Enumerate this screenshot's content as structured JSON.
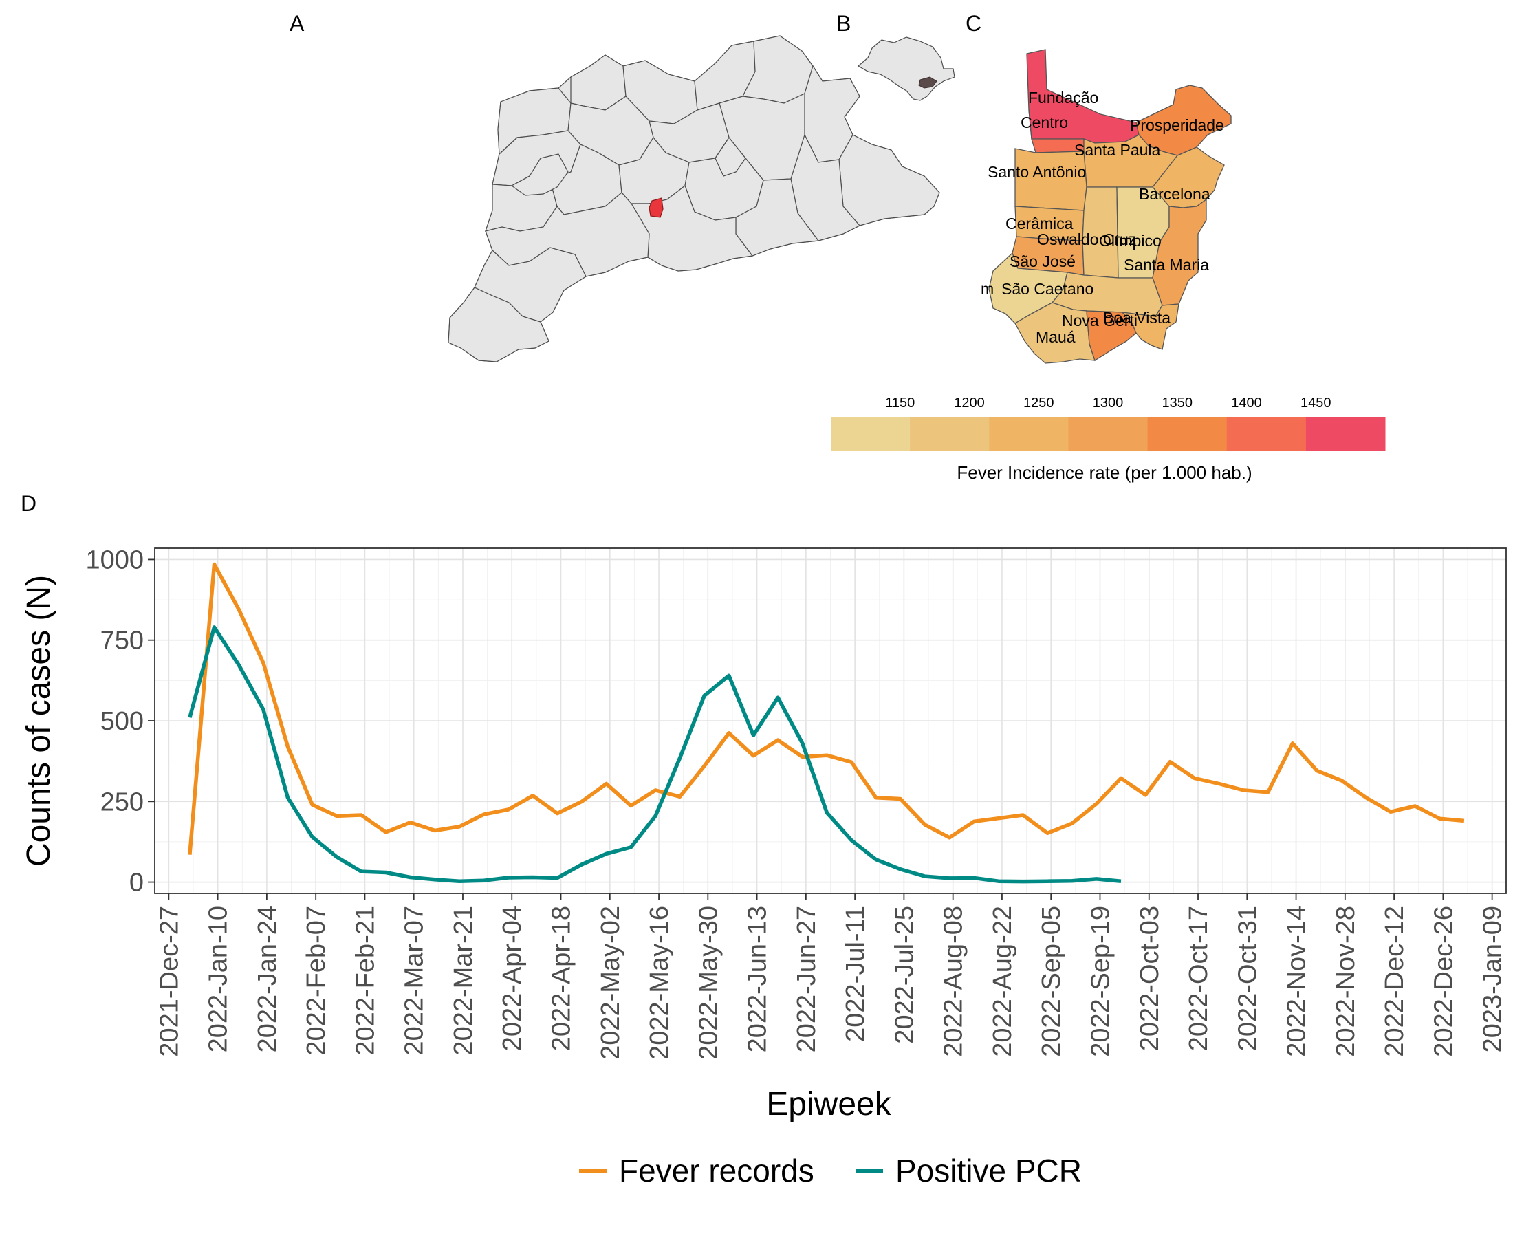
{
  "panels": {
    "a": "A",
    "b": "B",
    "c": "C",
    "d": "D"
  },
  "colors": {
    "fever": "#f28e1c",
    "pcr": "#008a85",
    "highlight": "#e8363c",
    "state_highlight": "#5a4a4a"
  },
  "map_c": {
    "labels": [
      {
        "id": "fundacao",
        "text": "Fundação"
      },
      {
        "id": "centro",
        "text": "Centro"
      },
      {
        "id": "prosperidade",
        "text": "Prosperidade"
      },
      {
        "id": "santa-paula",
        "text": "Santa Paula"
      },
      {
        "id": "santo-antonio",
        "text": "Santo Antônio"
      },
      {
        "id": "barcelona",
        "text": "Barcelona"
      },
      {
        "id": "ceramica",
        "text": "Cerâmica"
      },
      {
        "id": "oswaldo-cruz",
        "text": "Oswaldo Cruz"
      },
      {
        "id": "olimpico",
        "text": "Olímpico"
      },
      {
        "id": "sao-jose",
        "text": "São José"
      },
      {
        "id": "santa-maria",
        "text": "Santa Maria"
      },
      {
        "id": "jardim",
        "text": "m"
      },
      {
        "id": "sao-caetano",
        "text": "São Caetano"
      },
      {
        "id": "nova-gerti",
        "text": "Nova Gerti"
      },
      {
        "id": "boa-vista",
        "text": "Boa Vista"
      },
      {
        "id": "maua",
        "text": "Mauá"
      }
    ],
    "colorbar": {
      "title": "Fever Incidence rate (per 1.000 hab.)",
      "ticks": [
        "1150",
        "1200",
        "1250",
        "1300",
        "1350",
        "1400",
        "1450"
      ],
      "range": [
        1100,
        1500
      ],
      "colors": [
        "#ecd592",
        "#ecc47c",
        "#efb565",
        "#f0a357",
        "#f28a46",
        "#f46d52",
        "#ef4a63"
      ]
    }
  },
  "chart_data": {
    "type": "line",
    "xlabel": "Epiweek",
    "ylabel": "Counts of cases (N)",
    "x_tick_labels": [
      "2021-Dec-27",
      "2022-Jan-10",
      "2022-Jan-24",
      "2022-Feb-07",
      "2022-Feb-21",
      "2022-Mar-07",
      "2022-Mar-21",
      "2022-Apr-04",
      "2022-Apr-18",
      "2022-May-02",
      "2022-May-16",
      "2022-May-30",
      "2022-Jun-13",
      "2022-Jun-27",
      "2022-Jul-11",
      "2022-Jul-25",
      "2022-Aug-08",
      "2022-Aug-22",
      "2022-Sep-05",
      "2022-Sep-19",
      "2022-Oct-03",
      "2022-Oct-17",
      "2022-Oct-31",
      "2022-Nov-14",
      "2022-Nov-28",
      "2022-Dec-12",
      "2022-Dec-26",
      "2023-Jan-09"
    ],
    "x_range": [
      "2021-12-23",
      "2023-01-13"
    ],
    "y_ticks": [
      "0",
      "250",
      "500",
      "750",
      "1000"
    ],
    "ylim": [
      -35,
      1035
    ],
    "grid": true,
    "legend_position": "bottom",
    "series": [
      {
        "name": "Fever records",
        "color": "#f28e1c",
        "points": [
          [
            "2022-01-02",
            85
          ],
          [
            "2022-01-09",
            985
          ],
          [
            "2022-01-16",
            845
          ],
          [
            "2022-01-23",
            680
          ],
          [
            "2022-01-30",
            420
          ],
          [
            "2022-02-06",
            240
          ],
          [
            "2022-02-13",
            205
          ],
          [
            "2022-02-20",
            208
          ],
          [
            "2022-02-27",
            155
          ],
          [
            "2022-03-06",
            185
          ],
          [
            "2022-03-13",
            160
          ],
          [
            "2022-03-20",
            172
          ],
          [
            "2022-03-27",
            210
          ],
          [
            "2022-04-03",
            225
          ],
          [
            "2022-04-10",
            268
          ],
          [
            "2022-04-17",
            213
          ],
          [
            "2022-04-24",
            250
          ],
          [
            "2022-05-01",
            305
          ],
          [
            "2022-05-08",
            237
          ],
          [
            "2022-05-15",
            285
          ],
          [
            "2022-05-22",
            265
          ],
          [
            "2022-05-29",
            360
          ],
          [
            "2022-06-05",
            462
          ],
          [
            "2022-06-12",
            392
          ],
          [
            "2022-06-19",
            440
          ],
          [
            "2022-06-26",
            388
          ],
          [
            "2022-07-03",
            393
          ],
          [
            "2022-07-10",
            372
          ],
          [
            "2022-07-17",
            262
          ],
          [
            "2022-07-24",
            258
          ],
          [
            "2022-07-31",
            178
          ],
          [
            "2022-08-07",
            138
          ],
          [
            "2022-08-14",
            188
          ],
          [
            "2022-08-21",
            198
          ],
          [
            "2022-08-28",
            208
          ],
          [
            "2022-09-04",
            152
          ],
          [
            "2022-09-11",
            182
          ],
          [
            "2022-09-18",
            243
          ],
          [
            "2022-09-25",
            322
          ],
          [
            "2022-10-02",
            270
          ],
          [
            "2022-10-09",
            373
          ],
          [
            "2022-10-16",
            322
          ],
          [
            "2022-10-23",
            305
          ],
          [
            "2022-10-30",
            285
          ],
          [
            "2022-11-06",
            279
          ],
          [
            "2022-11-13",
            430
          ],
          [
            "2022-11-20",
            345
          ],
          [
            "2022-11-27",
            315
          ],
          [
            "2022-12-04",
            262
          ],
          [
            "2022-12-11",
            218
          ],
          [
            "2022-12-18",
            236
          ],
          [
            "2022-12-25",
            197
          ],
          [
            "2023-01-01",
            190
          ]
        ]
      },
      {
        "name": "Positive PCR",
        "color": "#008a85",
        "points": [
          [
            "2022-01-02",
            510
          ],
          [
            "2022-01-09",
            790
          ],
          [
            "2022-01-16",
            673
          ],
          [
            "2022-01-23",
            535
          ],
          [
            "2022-01-30",
            262
          ],
          [
            "2022-02-06",
            140
          ],
          [
            "2022-02-13",
            78
          ],
          [
            "2022-02-20",
            33
          ],
          [
            "2022-02-27",
            30
          ],
          [
            "2022-03-06",
            15
          ],
          [
            "2022-03-13",
            8
          ],
          [
            "2022-03-20",
            3
          ],
          [
            "2022-03-27",
            5
          ],
          [
            "2022-04-03",
            14
          ],
          [
            "2022-04-10",
            15
          ],
          [
            "2022-04-17",
            13
          ],
          [
            "2022-04-24",
            55
          ],
          [
            "2022-05-01",
            88
          ],
          [
            "2022-05-08",
            108
          ],
          [
            "2022-05-15",
            205
          ],
          [
            "2022-05-22",
            385
          ],
          [
            "2022-05-29",
            578
          ],
          [
            "2022-06-05",
            640
          ],
          [
            "2022-06-12",
            455
          ],
          [
            "2022-06-19",
            572
          ],
          [
            "2022-06-26",
            430
          ],
          [
            "2022-07-03",
            215
          ],
          [
            "2022-07-10",
            130
          ],
          [
            "2022-07-17",
            70
          ],
          [
            "2022-07-24",
            40
          ],
          [
            "2022-07-31",
            18
          ],
          [
            "2022-08-07",
            12
          ],
          [
            "2022-08-14",
            13
          ],
          [
            "2022-08-21",
            3
          ],
          [
            "2022-08-28",
            2
          ],
          [
            "2022-09-04",
            3
          ],
          [
            "2022-09-11",
            4
          ],
          [
            "2022-09-18",
            10
          ],
          [
            "2022-09-25",
            3
          ]
        ]
      }
    ]
  }
}
